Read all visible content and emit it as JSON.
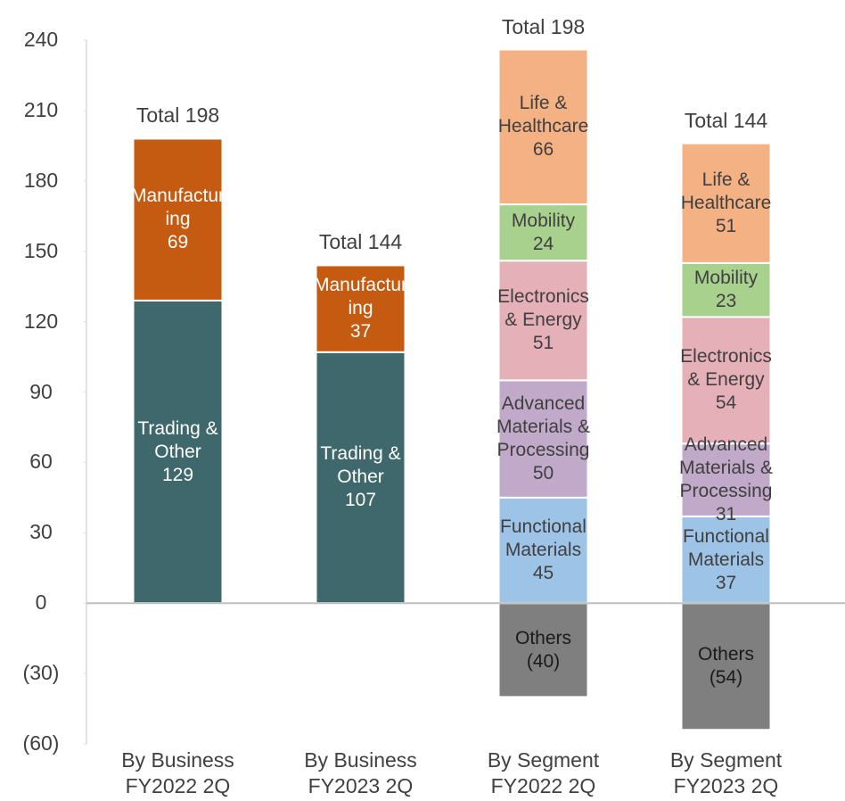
{
  "chart_data": {
    "type": "stacked_bar",
    "categories": [
      "By Business FY2022 2Q",
      "By Business FY2023 2Q",
      "By Segment FY2022 2Q",
      "By Segment FY2023 2Q"
    ],
    "series": [
      {
        "name": "Trading & Other",
        "color": "#3e686b",
        "label_color": "#ffffff",
        "values": [
          129,
          107,
          null,
          null
        ]
      },
      {
        "name": "Manufacturing",
        "color": "#c55a11",
        "label_color": "#ffffff",
        "values": [
          69,
          37,
          null,
          null
        ]
      },
      {
        "name": "Others",
        "color": "#7f7f7f",
        "label_color": "#1a1a1a",
        "values": [
          null,
          null,
          -40,
          -54
        ],
        "value_labels": [
          null,
          null,
          "(40)",
          "(54)"
        ]
      },
      {
        "name": "Functional Materials",
        "color": "#9dc3e6",
        "label_color": "#404040",
        "values": [
          null,
          null,
          45,
          37
        ]
      },
      {
        "name": "Advanced Materials & Processing",
        "color": "#c0a9c9",
        "label_color": "#404040",
        "values": [
          null,
          null,
          50,
          31
        ]
      },
      {
        "name": "Electronics & Energy",
        "color": "#e6b0b8",
        "label_color": "#404040",
        "values": [
          null,
          null,
          51,
          54
        ]
      },
      {
        "name": "Mobility",
        "color": "#a9d18e",
        "label_color": "#404040",
        "values": [
          null,
          null,
          24,
          23
        ]
      },
      {
        "name": "Life & Healthcare",
        "color": "#f4b183",
        "label_color": "#404040",
        "values": [
          null,
          null,
          66,
          51
        ]
      }
    ],
    "totals": [
      "Total 198",
      "Total 144",
      "Total 198",
      "Total 144"
    ],
    "ylim": [
      -60,
      240
    ],
    "yticks": [
      {
        "value": -60,
        "label": "(60)"
      },
      {
        "value": -30,
        "label": "(30)"
      },
      0,
      30,
      60,
      90,
      120,
      150,
      180,
      210,
      240
    ]
  }
}
